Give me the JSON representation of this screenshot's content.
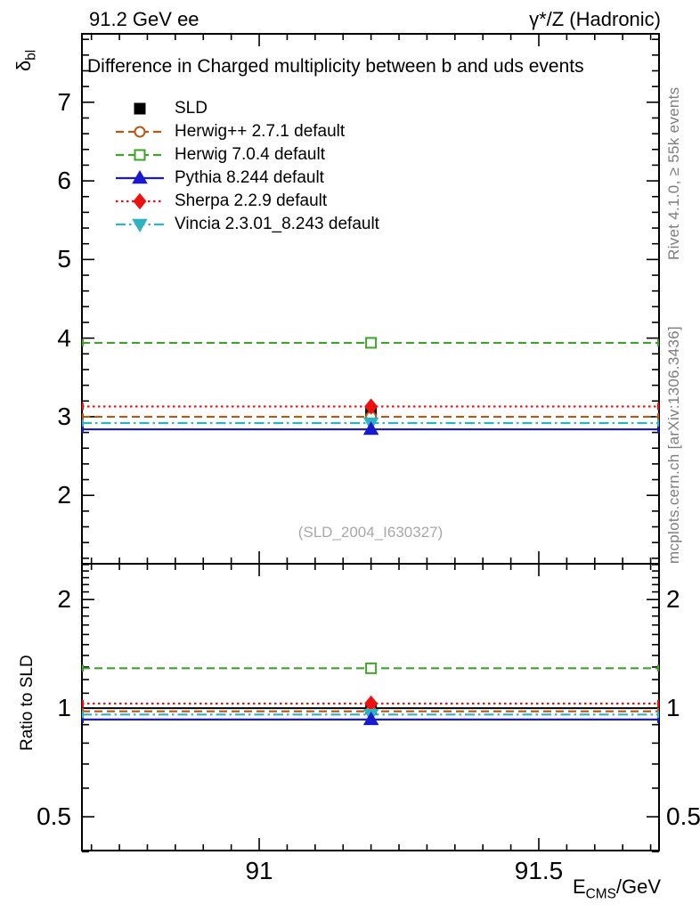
{
  "header": {
    "left": "91.2 GeV ee",
    "right": "γ*/Z (Hadronic)"
  },
  "side_notes": {
    "top": "Rivet 4.1.0, ≥ 55k events",
    "bottom": "mcplots.cern.ch [arXiv:1306.3436]"
  },
  "watermark": "(SLD_2004_I630327)",
  "axis_labels": {
    "y_base": "δ",
    "y_sub": "bl",
    "x_base": "E",
    "x_sub": "CMS",
    "x_suffix": "/GeV",
    "ratio": "Ratio to SLD"
  },
  "chart_data": {
    "type": "line",
    "title": "Difference in Charged multiplicity between b and uds events",
    "xlabel": "E_CMS/GeV",
    "ylabel": "delta_bl",
    "x_point": 91.2,
    "xlim": [
      90.683,
      91.715
    ],
    "x_major_ticks": [
      {
        "value": 91,
        "label": "91"
      },
      {
        "value": 91.5,
        "label": "91.5"
      }
    ],
    "x_minor_step": 0.05,
    "main_panel": {
      "scale": "linear",
      "ylim": [
        1.13,
        7.87
      ],
      "major_ticks": [
        2,
        3,
        4,
        5,
        6,
        7
      ],
      "minor_step": 0.2,
      "grid": false
    },
    "ratio_panel": {
      "scale": "log",
      "ylabel": "Ratio to SLD",
      "ylim": [
        0.403,
        2.513
      ],
      "major_ticks": [
        {
          "value": 0.5,
          "label": "0.5"
        },
        {
          "value": 1,
          "label": "1"
        },
        {
          "value": 2,
          "label": "2"
        }
      ],
      "minor_ticks": [
        0.4,
        0.6,
        0.7,
        0.8,
        0.9,
        1.1,
        1.2,
        1.3,
        1.4,
        1.5,
        1.6,
        1.7,
        1.8,
        1.9,
        2.1,
        2.2,
        2.3,
        2.4,
        2.5
      ],
      "reference_line": 1.0
    },
    "series": [
      {
        "name": "SLD",
        "kind": "data",
        "color": "#000000",
        "marker": "square",
        "fill": true,
        "line": "none",
        "value": 3.05,
        "ratio": 1.0
      },
      {
        "name": "Herwig++ 2.7.1 default",
        "kind": "mc",
        "color": "#b45a14",
        "marker": "circle",
        "fill": false,
        "line": "dashed",
        "value": 3.0,
        "ratio": 0.98
      },
      {
        "name": "Herwig 7.0.4 default",
        "kind": "mc",
        "color": "#3fa32a",
        "marker": "square",
        "fill": false,
        "line": "dashed",
        "value": 3.94,
        "ratio": 1.29
      },
      {
        "name": "Pythia 8.244 default",
        "kind": "mc",
        "color": "#1919cd",
        "marker": "triangle-up",
        "fill": true,
        "line": "solid",
        "value": 2.84,
        "ratio": 0.93
      },
      {
        "name": "Sherpa 2.2.9 default",
        "kind": "mc",
        "color": "#ed1212",
        "marker": "diamond",
        "fill": true,
        "line": "dotted",
        "value": 3.13,
        "ratio": 1.03
      },
      {
        "name": "Vincia 2.3.01_8.243 default",
        "kind": "mc",
        "color": "#2fb3c4",
        "marker": "triangle-down",
        "fill": true,
        "line": "dashdot",
        "value": 2.92,
        "ratio": 0.96
      }
    ],
    "legend_position": "top-left",
    "marker_z_order": [
      0,
      1,
      2,
      4,
      5,
      3
    ]
  }
}
